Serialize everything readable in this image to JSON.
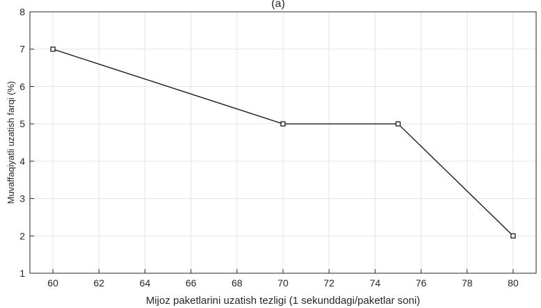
{
  "chart_data": {
    "type": "line",
    "title": "(a)",
    "xlabel": "Mijoz paketlarini uzatish tezligi (1 sekunddagi/paketlar soni)",
    "ylabel": "Muvaffaqiyatli uzatish farqi (%)",
    "xlim": [
      59,
      81
    ],
    "ylim": [
      1,
      8
    ],
    "xticks": [
      60,
      62,
      64,
      66,
      68,
      70,
      72,
      74,
      76,
      78,
      80
    ],
    "yticks": [
      1,
      2,
      3,
      4,
      5,
      6,
      7,
      8
    ],
    "grid": true,
    "series": [
      {
        "x": [
          60,
          70,
          75,
          80
        ],
        "y": [
          7,
          5,
          5,
          2
        ],
        "marker": "square",
        "color": "#1a1a1a"
      }
    ]
  }
}
